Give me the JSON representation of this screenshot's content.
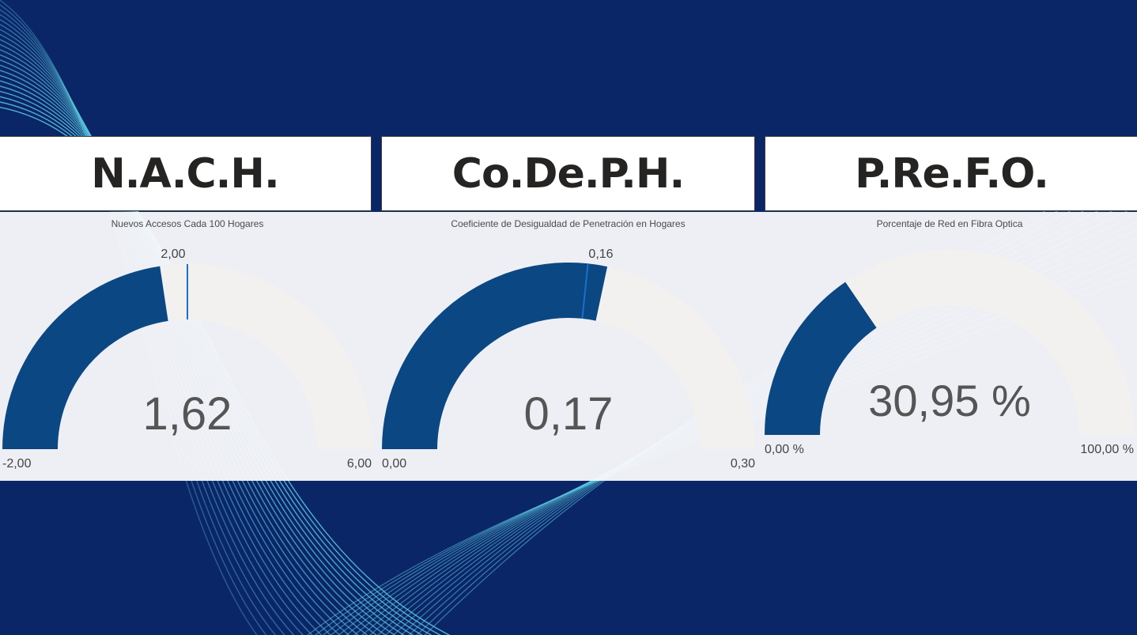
{
  "colors": {
    "background": "#0b2667",
    "gauge_fill": "#0b4783",
    "gauge_track": "#f2f1ef",
    "target_line": "#1a6fd1",
    "wave": "#5cc8e0"
  },
  "cards": [
    {
      "title": "N.A.C.H.",
      "subtitle": "Nuevos Accesos Cada 100 Hogares",
      "value_label": "1,62",
      "min_label": "-2,00",
      "max_label": "6,00",
      "target_label": "2,00"
    },
    {
      "title": "Co.De.P.H.",
      "subtitle": "Coeficiente de Desigualdad de Penetración en Hogares",
      "value_label": "0,17",
      "min_label": "0,00",
      "max_label": "0,30",
      "target_label": "0,16"
    },
    {
      "title": "P.Re.F.O.",
      "subtitle": "Porcentaje de Red en Fibra Optica",
      "value_label": "30,95 %",
      "min_label": "0,00 %",
      "max_label": "100,00 %",
      "target_label": ""
    }
  ],
  "chart_data": [
    {
      "type": "gauge",
      "title": "N.A.C.H.",
      "subtitle": "Nuevos Accesos Cada 100 Hogares",
      "value": 1.62,
      "min": -2.0,
      "max": 6.0,
      "target": 2.0
    },
    {
      "type": "gauge",
      "title": "Co.De.P.H.",
      "subtitle": "Coeficiente de Desigualdad de Penetración en Hogares",
      "value": 0.17,
      "min": 0.0,
      "max": 0.3,
      "target": 0.16
    },
    {
      "type": "gauge",
      "title": "P.Re.F.O.",
      "subtitle": "Porcentaje de Red en Fibra Optica",
      "value": 30.95,
      "min": 0.0,
      "max": 100.0,
      "target": null
    }
  ]
}
